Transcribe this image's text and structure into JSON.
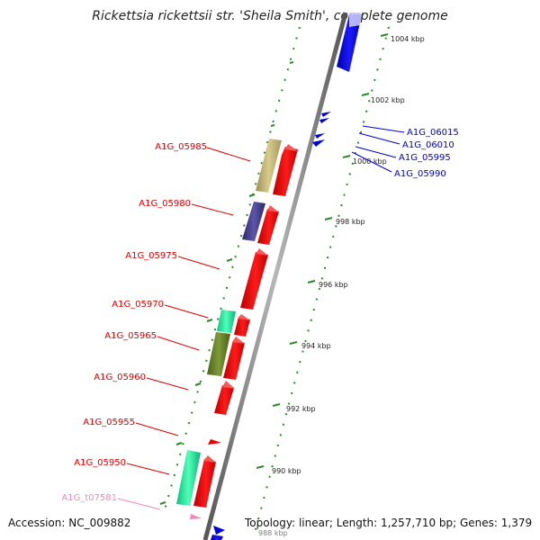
{
  "title": "Rickettsia rickettsii str. 'Sheila Smith', complete genome",
  "footer": {
    "accession": "Accession: NC_009882",
    "topology": "Topology: linear; Length: 1,257,710 bp; Genes: 1,379"
  },
  "colors": {
    "backbone": "#8a8a8a",
    "tick": "#2a8a2a",
    "label_red": "#e00000",
    "label_blue": "#0000dd",
    "label_pink": "#ee88bb"
  },
  "scale_ticks": [
    {
      "label": "1004 kbp",
      "kbp": 1004
    },
    {
      "label": "1002 kbp",
      "kbp": 1002
    },
    {
      "label": "1000 kbp",
      "kbp": 1000
    },
    {
      "label": "998 kbp",
      "kbp": 998
    },
    {
      "label": "996 kbp",
      "kbp": 996
    },
    {
      "label": "994 kbp",
      "kbp": 994
    },
    {
      "label": "992 kbp",
      "kbp": 992
    },
    {
      "label": "990 kbp",
      "kbp": 990
    },
    {
      "label": "988 kbp",
      "kbp": 988
    }
  ],
  "genes_left": [
    {
      "name": "A1G_05985"
    },
    {
      "name": "A1G_05980"
    },
    {
      "name": "A1G_05975"
    },
    {
      "name": "A1G_05970"
    },
    {
      "name": "A1G_05965"
    },
    {
      "name": "A1G_05960"
    },
    {
      "name": "A1G_05955"
    },
    {
      "name": "A1G_05950"
    },
    {
      "name": "A1G_t07581"
    }
  ],
  "genes_right": [
    {
      "name": "A1G_06015"
    },
    {
      "name": "A1G_06010"
    },
    {
      "name": "A1G_05995"
    },
    {
      "name": "A1G_05990"
    }
  ]
}
